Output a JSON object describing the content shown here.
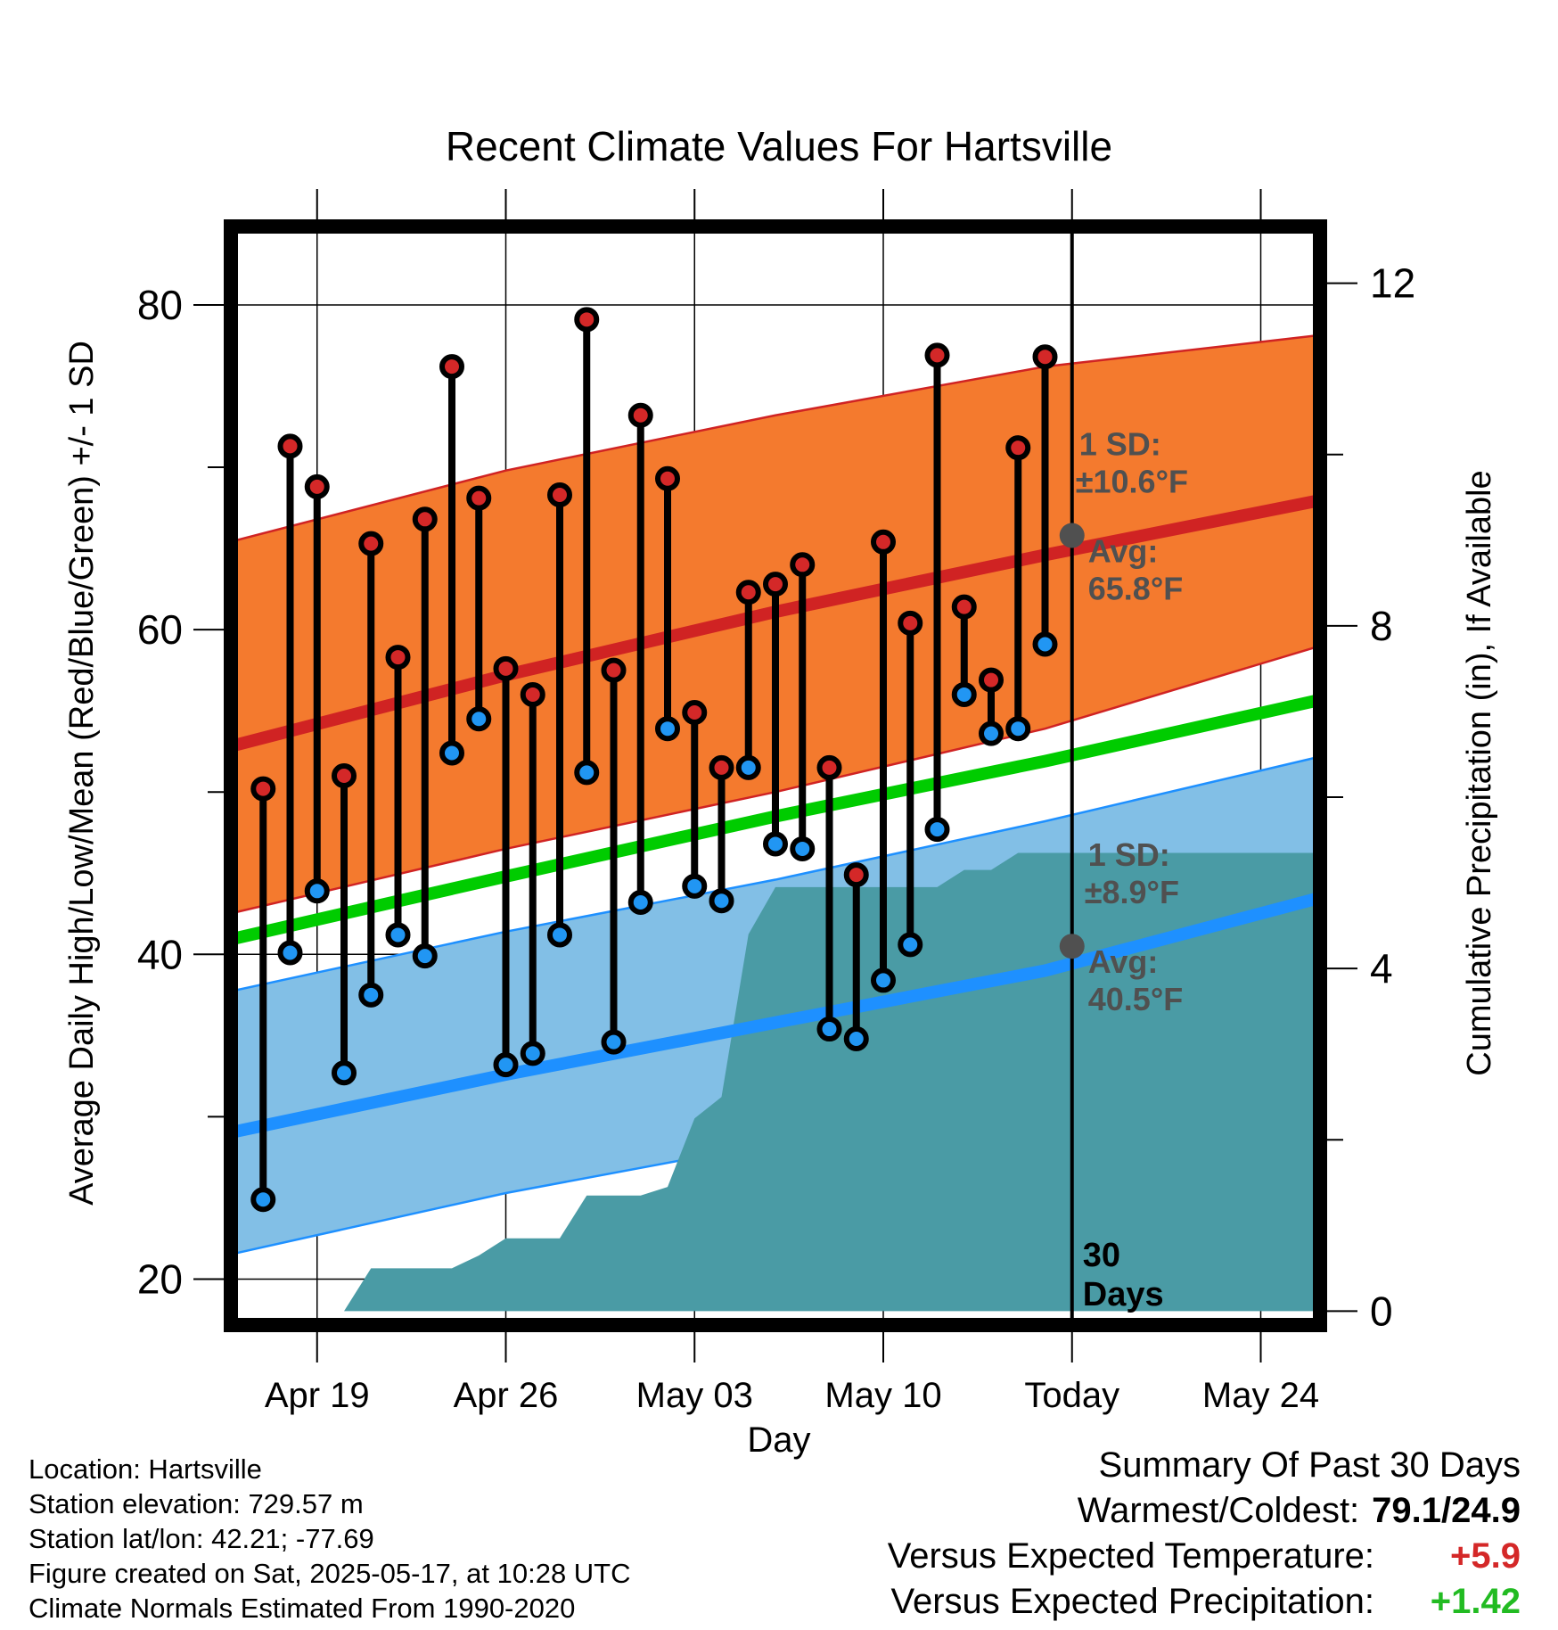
{
  "chart_data": {
    "type": "line",
    "title": "Recent Climate Values For Hartsville",
    "xlabel": "Day",
    "ylabel": "Average Daily High/Low/Mean (Red/Blue/Green) +/- 1 SD",
    "y2label": "Cumulative Precipitation (in), If Available",
    "x_tick_labels": [
      "Apr 19",
      "Apr 26",
      "May 03",
      "May 10",
      "Today",
      "May 24"
    ],
    "x_tick_dates": [
      "2025-04-19",
      "2025-04-26",
      "2025-05-03",
      "2025-05-10",
      "2025-05-17",
      "2025-05-24"
    ],
    "xlim": [
      "2025-04-16",
      "2025-05-26"
    ],
    "ylim": [
      17.5,
      84.5
    ],
    "y_ticks": [
      20,
      40,
      60,
      80
    ],
    "y2lim": [
      -0.1,
      12.6
    ],
    "y2_ticks": [
      0,
      4,
      8,
      12
    ],
    "grid": true,
    "today_line_label": "30 Days",
    "normal_high": {
      "dates": [
        "2025-04-16",
        "2025-04-26",
        "2025-05-06",
        "2025-05-16",
        "2025-05-26"
      ],
      "mean": [
        52.9,
        57.2,
        61.1,
        64.6,
        67.9
      ],
      "upper": [
        65.5,
        69.8,
        73.2,
        76.2,
        78.1
      ],
      "lower": [
        42.6,
        46.5,
        50.0,
        53.9,
        58.9
      ]
    },
    "normal_low": {
      "dates": [
        "2025-04-16",
        "2025-04-26",
        "2025-05-06",
        "2025-05-16",
        "2025-05-26"
      ],
      "mean": [
        29.1,
        32.6,
        35.8,
        39.0,
        43.4
      ],
      "upper": [
        37.8,
        41.4,
        44.6,
        48.2,
        52.1
      ],
      "lower": [
        21.6,
        25.3,
        28.4,
        31.6,
        35.9
      ]
    },
    "normal_mean": {
      "dates": [
        "2025-04-16",
        "2025-04-26",
        "2025-05-06",
        "2025-05-16",
        "2025-05-26"
      ],
      "values": [
        41.0,
        44.8,
        48.5,
        51.9,
        55.6
      ]
    },
    "observed": {
      "dates": [
        "2025-04-17",
        "2025-04-18",
        "2025-04-19",
        "2025-04-20",
        "2025-04-21",
        "2025-04-22",
        "2025-04-23",
        "2025-04-24",
        "2025-04-25",
        "2025-04-26",
        "2025-04-27",
        "2025-04-28",
        "2025-04-29",
        "2025-04-30",
        "2025-05-01",
        "2025-05-02",
        "2025-05-03",
        "2025-05-04",
        "2025-05-05",
        "2025-05-06",
        "2025-05-07",
        "2025-05-08",
        "2025-05-09",
        "2025-05-10",
        "2025-05-11",
        "2025-05-12",
        "2025-05-13",
        "2025-05-14",
        "2025-05-15",
        "2025-05-16"
      ],
      "high": [
        50.2,
        71.3,
        68.8,
        51.0,
        65.3,
        58.3,
        66.8,
        76.2,
        68.1,
        57.6,
        56.0,
        68.3,
        79.1,
        57.5,
        73.2,
        69.3,
        54.9,
        51.5,
        62.3,
        62.8,
        64.0,
        51.5,
        44.9,
        65.4,
        60.4,
        76.9,
        61.4,
        56.9,
        71.2,
        76.8
      ],
      "low": [
        24.9,
        40.1,
        43.9,
        32.7,
        37.5,
        41.2,
        39.9,
        52.4,
        54.5,
        33.2,
        33.9,
        41.2,
        51.2,
        34.6,
        43.2,
        53.9,
        44.2,
        43.3,
        51.5,
        46.8,
        46.5,
        35.4,
        34.8,
        38.4,
        40.6,
        47.7,
        56.0,
        53.6,
        53.9,
        59.1
      ]
    },
    "precipitation": {
      "dates": [
        "2025-04-16",
        "2025-04-17",
        "2025-04-18",
        "2025-04-19",
        "2025-04-20",
        "2025-04-21",
        "2025-04-22",
        "2025-04-23",
        "2025-04-24",
        "2025-04-25",
        "2025-04-26",
        "2025-04-27",
        "2025-04-28",
        "2025-04-29",
        "2025-04-30",
        "2025-05-01",
        "2025-05-02",
        "2025-05-03",
        "2025-05-04",
        "2025-05-05",
        "2025-05-06",
        "2025-05-07",
        "2025-05-08",
        "2025-05-09",
        "2025-05-10",
        "2025-05-11",
        "2025-05-12",
        "2025-05-13",
        "2025-05-14",
        "2025-05-15",
        "2025-05-16",
        "2025-05-17",
        "2025-05-26"
      ],
      "cumulative": [
        0.0,
        0.0,
        0.0,
        0.0,
        0.0,
        0.5,
        0.5,
        0.5,
        0.5,
        0.65,
        0.85,
        0.85,
        0.85,
        1.35,
        1.35,
        1.35,
        1.45,
        2.25,
        2.5,
        4.4,
        4.95,
        4.95,
        4.95,
        4.95,
        4.95,
        4.95,
        4.95,
        5.15,
        5.15,
        5.35,
        5.35,
        5.35,
        5.35
      ]
    },
    "high_annotation": {
      "sd_label": "1 SD:",
      "sd_value": "±10.6°F",
      "avg_label": "Avg:",
      "avg_value": "65.8°F",
      "avg": 65.8
    },
    "low_annotation": {
      "sd_label": "1 SD:",
      "sd_value": "±8.9°F",
      "avg_label": "Avg:",
      "avg_value": "40.5°F",
      "avg": 40.5
    },
    "colors": {
      "high_band": "#F47A2E",
      "high_line": "#D02323",
      "low_band": "#82BFE6",
      "low_line": "#1E90FF",
      "mean_line": "#00CC00",
      "precip": "#4A9BA5",
      "high_dot": "#D42828",
      "low_dot": "#2196F3",
      "annotation_text": "#505050"
    }
  },
  "info": {
    "location": "Location: Hartsville",
    "elevation": "Station elevation: 729.57 m",
    "latlon": "Station lat/lon: 42.21; -77.69",
    "created": "Figure created on Sat, 2025-05-17, at 10:28 UTC",
    "normals": "Climate Normals Estimated From 1990-2020"
  },
  "summary": {
    "title": "Summary Of Past 30 Days",
    "warm_cold_label": "Warmest/Coldest:",
    "warm_cold_value": "79.1/24.9",
    "temp_label": "Versus Expected Temperature:",
    "temp_value": "+5.9",
    "temp_color": "#D42828",
    "precip_label": "Versus Expected Precipitation:",
    "precip_value": "+1.42",
    "precip_color": "#22BB22"
  }
}
